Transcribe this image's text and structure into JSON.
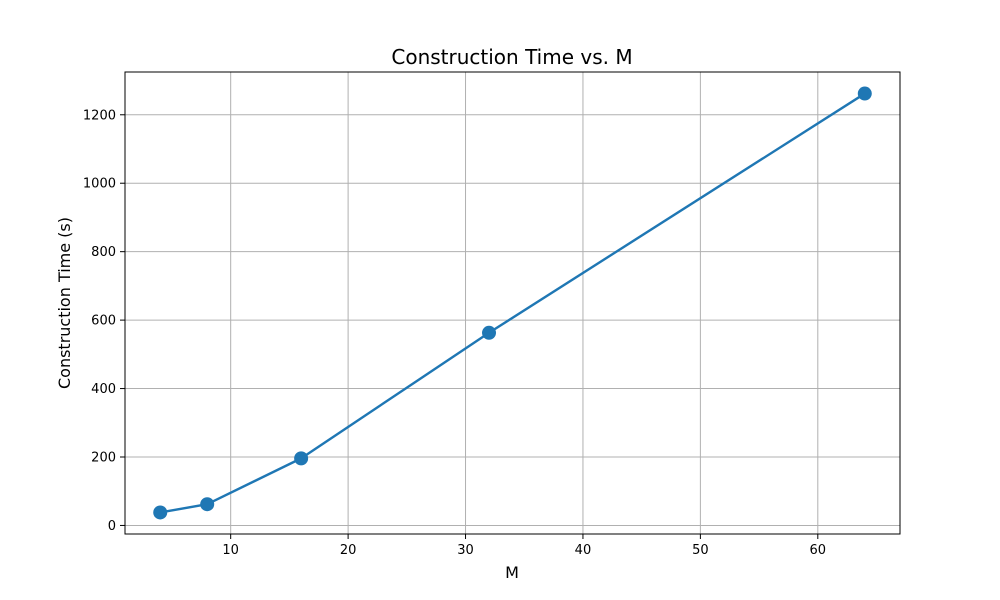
{
  "chart_data": {
    "type": "line",
    "title": "Construction Time vs. M",
    "xlabel": "M",
    "ylabel": "Construction Time (s)",
    "xlim": [
      1.0,
      67.0
    ],
    "ylim": [
      -25,
      1325
    ],
    "xticks": [
      10,
      20,
      30,
      40,
      50,
      60
    ],
    "yticks": [
      0,
      200,
      400,
      600,
      800,
      1000,
      1200
    ],
    "grid": true,
    "series": [
      {
        "color": "#1f77b4",
        "marker": "circle",
        "x": [
          4,
          8,
          16,
          32,
          64
        ],
        "y": [
          38,
          62,
          196,
          563,
          1262
        ]
      }
    ]
  }
}
